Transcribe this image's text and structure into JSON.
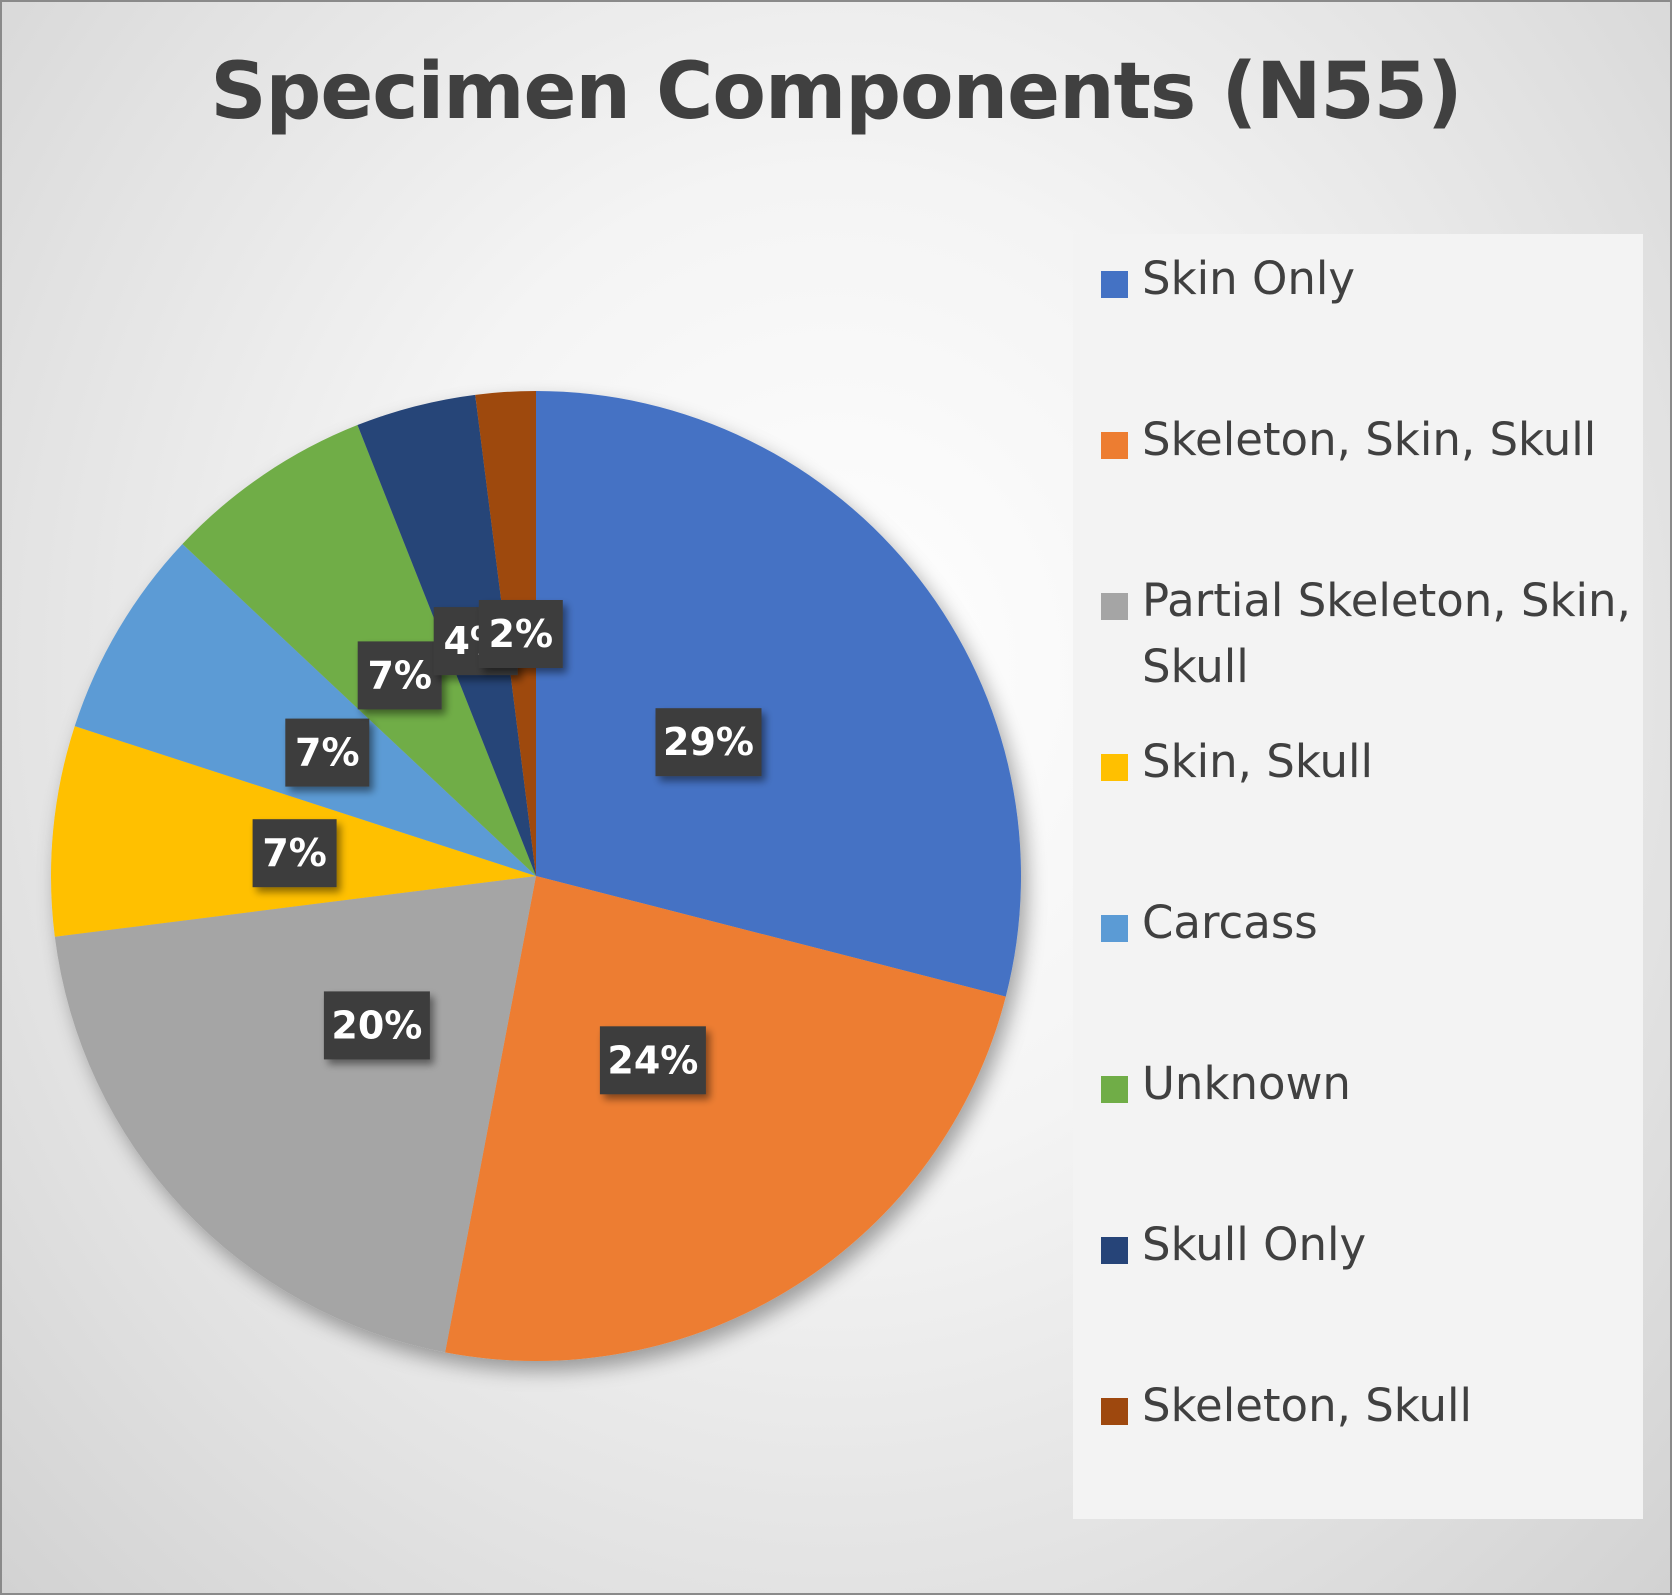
{
  "chart_data": {
    "type": "pie",
    "title": "Specimen Components (N55)",
    "legend_placement": "right",
    "slices": [
      {
        "name": "Skin Only",
        "value": 29,
        "label": "29%",
        "color": "#4472C4"
      },
      {
        "name": "Skeleton, Skin, Skull",
        "value": 24,
        "label": "24%",
        "color": "#ED7D31"
      },
      {
        "name": "Partial Skeleton, Skin, Skull",
        "value": 20,
        "label": "20%",
        "color": "#A5A5A5"
      },
      {
        "name": "Skin, Skull",
        "value": 7,
        "label": "7%",
        "color": "#FFC000"
      },
      {
        "name": "Carcass",
        "value": 7,
        "label": "7%",
        "color": "#5B9BD5"
      },
      {
        "name": "Unknown",
        "value": 7,
        "label": "7%",
        "color": "#70AD47"
      },
      {
        "name": "Skull Only",
        "value": 4,
        "label": "4%",
        "color": "#264478"
      },
      {
        "name": "Skeleton, Skull",
        "value": 2,
        "label": "2%",
        "color": "#9E480E"
      }
    ]
  }
}
